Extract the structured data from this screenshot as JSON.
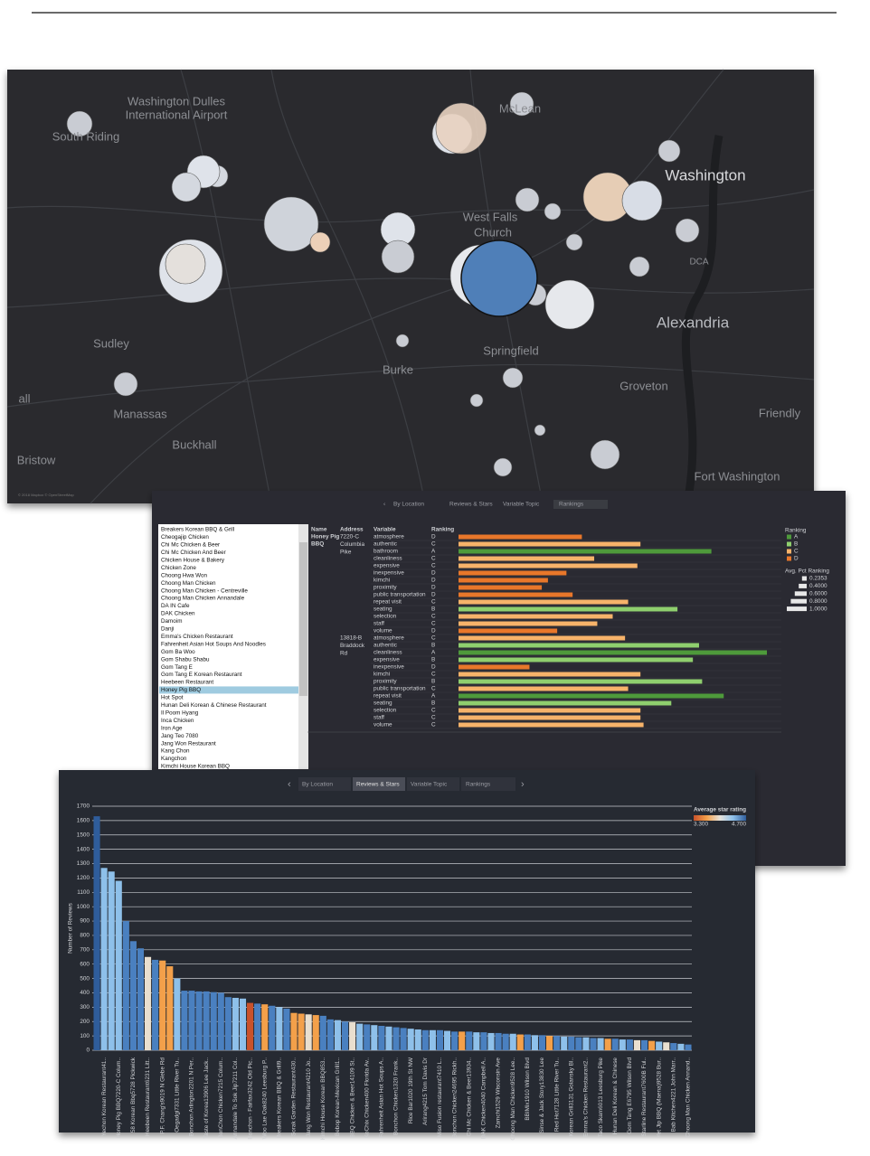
{
  "map": {
    "labels": [
      "Washington Dulles",
      "International Airport",
      "South Riding",
      "McLean",
      "Washington",
      "West Falls",
      "Church",
      "DCA",
      "Alexandria",
      "Sudley",
      "Springfield",
      "Burke",
      "Groveton",
      "all",
      "Manassas",
      "Friendly",
      "Buckhall",
      "Bristow",
      "Fort Washington"
    ],
    "attribution": "© 2018 Mapbox © OpenStreetMap"
  },
  "tabs": [
    "By Location",
    "Reviews & Stars",
    "Variable Topic",
    "Rankings"
  ],
  "rankings": {
    "restaurants": [
      "Breakers Korean BBQ & Grill",
      "Cheogajip Chicken",
      "Chi Mc Chicken & Beer",
      "Chi Mc Chicken And Beer",
      "Chicken House & Bakery",
      "Chicken Zone",
      "Choong Hwa Won",
      "Choong Man Chicken",
      "Choong Man Chicken - Centreville",
      "Choong Man Chicken Annandale",
      "DA IN Cafe",
      "DAK Chicken",
      "Damoim",
      "Danji",
      "Emma's Chicken Restaurant",
      "Fahrenheit Asian Hot Soups And Noodles",
      "Gom Ba Woo",
      "Gom Shabu Shabu",
      "Gom Tang E",
      "Gom Tang E Korean Restaurant",
      "Heebeen Restaurant",
      "Honey Pig BBQ",
      "Hot Spot",
      "Hunan Deli Korean & Chinese Restaurant",
      "Il Poom Hyang",
      "Inca Chicken",
      "Iron Age",
      "Jang Teo 7080",
      "Jang Won Restaurant",
      "Kang Chon",
      "Kangchon",
      "Kimchi House Korean BBQ"
    ],
    "columns": [
      "Name",
      "Address",
      "Variable",
      "Ranking"
    ],
    "name_lines": [
      "Honey Pig",
      "BBQ"
    ],
    "xlim": [
      0,
      1
    ],
    "ranking_colors": {
      "A": "#4e9a3b",
      "B": "#8fcf6e",
      "C": "#f7b36a",
      "D": "#e8772a"
    },
    "groups": [
      {
        "address": [
          "7220-C",
          "Columbia",
          "Pike"
        ],
        "rows": [
          {
            "variable": "atmosphere",
            "ranking": "D",
            "value": 0.4
          },
          {
            "variable": "authentic",
            "ranking": "C",
            "value": 0.59
          },
          {
            "variable": "bathroom",
            "ranking": "A",
            "value": 0.82
          },
          {
            "variable": "cleanliness",
            "ranking": "C",
            "value": 0.44
          },
          {
            "variable": "expensive",
            "ranking": "C",
            "value": 0.58
          },
          {
            "variable": "inexpensive",
            "ranking": "D",
            "value": 0.35
          },
          {
            "variable": "kimchi",
            "ranking": "D",
            "value": 0.29
          },
          {
            "variable": "proximity",
            "ranking": "D",
            "value": 0.27
          },
          {
            "variable": "public transportation",
            "ranking": "D",
            "value": 0.37
          },
          {
            "variable": "repeat visit",
            "ranking": "C",
            "value": 0.55
          },
          {
            "variable": "seating",
            "ranking": "B",
            "value": 0.71
          },
          {
            "variable": "selection",
            "ranking": "C",
            "value": 0.5
          },
          {
            "variable": "staff",
            "ranking": "C",
            "value": 0.45
          },
          {
            "variable": "volume",
            "ranking": "D",
            "value": 0.32
          }
        ]
      },
      {
        "address": [
          "13818-B",
          "Braddock",
          "Rd"
        ],
        "rows": [
          {
            "variable": "atmosphere",
            "ranking": "C",
            "value": 0.54
          },
          {
            "variable": "authentic",
            "ranking": "B",
            "value": 0.78
          },
          {
            "variable": "cleanliness",
            "ranking": "A",
            "value": 1.0
          },
          {
            "variable": "expensive",
            "ranking": "B",
            "value": 0.76
          },
          {
            "variable": "inexpensive",
            "ranking": "D",
            "value": 0.23
          },
          {
            "variable": "kimchi",
            "ranking": "C",
            "value": 0.59
          },
          {
            "variable": "proximity",
            "ranking": "B",
            "value": 0.79
          },
          {
            "variable": "public transportation",
            "ranking": "C",
            "value": 0.55
          },
          {
            "variable": "repeat visit",
            "ranking": "A",
            "value": 0.86
          },
          {
            "variable": "seating",
            "ranking": "B",
            "value": 0.69
          },
          {
            "variable": "selection",
            "ranking": "C",
            "value": 0.59
          },
          {
            "variable": "staff",
            "ranking": "C",
            "value": 0.59
          },
          {
            "variable": "volume",
            "ranking": "C",
            "value": 0.6
          }
        ]
      }
    ],
    "legend_title": "Ranking",
    "legend_ranks": [
      "A",
      "B",
      "C",
      "D"
    ],
    "size_legend": {
      "title": "Avg. Pct Ranking",
      "values": [
        0.2353,
        {
          "value": 0.4,
          "label": "0.4000"
        },
        {
          "value": 0.6,
          "label": "0.6000"
        },
        {
          "value": 0.8,
          "label": "0.8000"
        },
        {
          "value": 1,
          "label": "1.0000"
        }
      ]
    }
  },
  "chart_data": {
    "type": "bar",
    "y_label": "Number of Reviews",
    "ylim": [
      0,
      1700
    ],
    "yticks": [
      0,
      100,
      200,
      300,
      400,
      500,
      600,
      700,
      800,
      900,
      1000,
      1100,
      1200,
      1300,
      1400,
      1500,
      1600,
      1700
    ],
    "grid": true,
    "color_legend": {
      "title": "Average star rating",
      "colors": [
        "#c9522b",
        "#f3a04a",
        "#e6e2da",
        "#8ec0ea",
        "#2f5d9b"
      ],
      "min": {
        "value": 3.3,
        "label": "3.300"
      },
      "max": {
        "value": 4.7,
        "label": "4.700"
      }
    },
    "categories": [
      null,
      "Yechon Korean Restaurant41..",
      null,
      "Honey Pig BBQ7220-C Colum..",
      null,
      "58 Korean Bbq5728 Pickwick",
      null,
      "Heebeen Restaurant6231 Litt..",
      null,
      "P.F. Chang's9019 N Glebe Rd",
      null,
      "Oegadgi7331 Little River Tu..",
      null,
      "Bonchon Arlington2201 N Per..",
      null,
      "Taste of Korea13906 Lee Jack..",
      null,
      "BonChon Chicken7215 Colum..",
      null,
      "Annandale To Sok Jip7211 Col..",
      null,
      "Bonchon - Fairfax3242 Old Pic..",
      null,
      "Woo Lae Oak8240 Leesburg P..",
      null,
      "Breakers Korean BBQ & Grill9..",
      null,
      "Sorak Garden Restaurant430..",
      null,
      "Jang Won Restaurant4210 Jo..",
      null,
      "Kimchi House Korean BBQ853..",
      null,
      "Bebop Korean-Mexican Grill1..",
      null,
      "BBQ Chicken & Beer14109 St..",
      null,
      "KoChix Chicken400 Florida Av..",
      null,
      "Fahrenheit Asian Hot Soups A..",
      null,
      "Bonchon Chicken1320 Frank..",
      null,
      "Rice Bar1020 19th St NW",
      null,
      "Arirang4215 Tom Davis Dr",
      null,
      "Miso Fusion restaurant7410 L..",
      null,
      "Bonchon Chicken24695 Rickh..",
      null,
      "Chi Mc Chicken & Beer13934..",
      null,
      "DAK Chicken4040 Campbell A..",
      null,
      "Zamchi1529 Wisconsin Ave",
      null,
      "Choong Man Chicken9528 Lee..",
      null,
      "BBIMix1910 Wilson Blvd",
      null,
      "Sinse & Jack Story13830 Lee",
      null,
      "Red Hot7128 Little River Tu..",
      null,
      "Korean Grill3131 Golansky Bl..",
      null,
      "Emma's Chicken Restaurant2..",
      null,
      "Taco Skam6013 Leesburg Pike",
      null,
      "Hunan Deli Korean & Chinese",
      null,
      "Gom Tang E6795 Wilson Blvd",
      null,
      "Starline Restaurant7600B Ful..",
      null,
      "Yet Jip BBQ (Maena)9528 Bur..",
      null,
      "Bab Kitchen4221 John Marr..",
      null,
      "Choong Man Chicken Annand.."
    ],
    "values": [
      1630,
      1270,
      1245,
      1180,
      900,
      760,
      710,
      650,
      630,
      625,
      585,
      500,
      415,
      415,
      410,
      410,
      405,
      400,
      370,
      365,
      360,
      330,
      325,
      320,
      310,
      300,
      290,
      260,
      255,
      250,
      245,
      240,
      215,
      210,
      200,
      195,
      185,
      180,
      175,
      170,
      165,
      160,
      155,
      150,
      145,
      140,
      140,
      140,
      135,
      130,
      130,
      130,
      125,
      125,
      120,
      120,
      115,
      115,
      110,
      110,
      105,
      105,
      100,
      100,
      95,
      95,
      90,
      90,
      85,
      85,
      80,
      80,
      75,
      75,
      70,
      70,
      65,
      60,
      55,
      50,
      45,
      40
    ],
    "colors": [
      "#2f5d9b",
      "#8ec0ea",
      "#8ec0ea",
      "#8ec0ea",
      "#4a80c0",
      "#4a80c0",
      "#4a80c0",
      "#e9dfcf",
      "#4a80c0",
      "#f3a04a",
      "#f3a04a",
      "#8ec0ea",
      "#4a80c0",
      "#4a80c0",
      "#4a80c0",
      "#4a80c0",
      "#4a80c0",
      "#4a80c0",
      "#4a80c0",
      "#8ec0ea",
      "#8ec0ea",
      "#c9522b",
      "#4a80c0",
      "#f3a04a",
      "#4a80c0",
      "#8ec0ea",
      "#4a80c0",
      "#f3a04a",
      "#f3a04a",
      "#e9dfcf",
      "#f3a04a",
      "#4a80c0",
      "#4a80c0",
      "#8ec0ea",
      "#4a80c0",
      "#e9dfcf",
      "#8ec0ea",
      "#4a80c0",
      "#8ec0ea",
      "#4a80c0",
      "#8ec0ea",
      "#4a80c0",
      "#4a80c0",
      "#8ec0ea",
      "#8ec0ea",
      "#4a80c0",
      "#8ec0ea",
      "#4a80c0",
      "#8ec0ea",
      "#4a80c0",
      "#f3a04a",
      "#4a80c0",
      "#8ec0ea",
      "#4a80c0",
      "#8ec0ea",
      "#4a80c0",
      "#4a80c0",
      "#8ec0ea",
      "#f3a04a",
      "#4a80c0",
      "#8ec0ea",
      "#4a80c0",
      "#f3a04a",
      "#4a80c0",
      "#8ec0ea",
      "#4a80c0",
      "#4a80c0",
      "#8ec0ea",
      "#4a80c0",
      "#8ec0ea",
      "#f3a04a",
      "#4a80c0",
      "#8ec0ea",
      "#4a80c0",
      "#e9dfcf",
      "#4a80c0",
      "#f3a04a",
      "#8ec0ea",
      "#e9dfcf",
      "#4a80c0",
      "#8ec0ea",
      "#4a80c0"
    ]
  }
}
